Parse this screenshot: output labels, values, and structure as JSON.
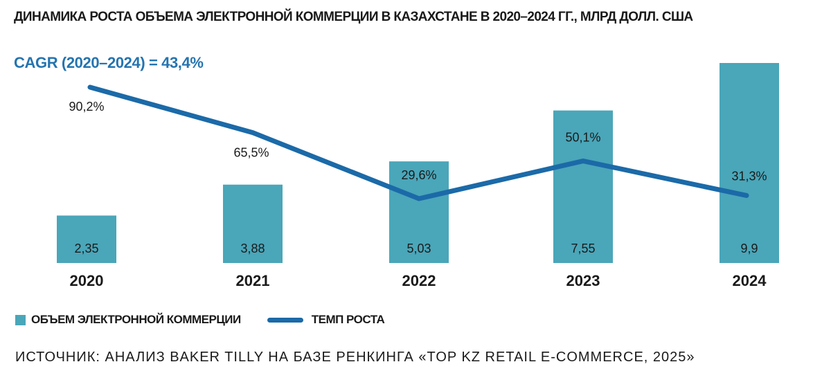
{
  "title": "ДИНАМИКА РОСТА ОБЪЕМА ЭЛЕКТРОННОЙ КОММЕРЦИИ В КАЗАХСТАНЕ В 2020–2024 ГГ., МЛРД ДОЛЛ. США",
  "cagr_label": "CAGR (2020–2024) = 43,4%",
  "legend": {
    "bar_label": "ОБЪЕМ ЭЛЕКТРОННОЙ КОММЕРЦИИ",
    "line_label": "ТЕМП РОСТА"
  },
  "source": "ИСТОЧНИК: АНАЛИЗ BAKER TILLY НА БАЗЕ РЕНКИНГА «TOP KZ RETAIL E-COMMERCE, 2025»",
  "colors": {
    "bar": "#4aa6b9",
    "line": "#1b6aa8",
    "cagr": "#2474b0"
  },
  "chart_data": {
    "type": "bar",
    "categories": [
      "2020",
      "2021",
      "2022",
      "2023",
      "2024"
    ],
    "series": [
      {
        "name": "ОБЪЕМ ЭЛЕКТРОННОЙ КОММЕРЦИИ",
        "type": "bar",
        "values": [
          2.35,
          3.88,
          5.03,
          7.55,
          9.9
        ],
        "labels": [
          "2,35",
          "3,88",
          "5,03",
          "7,55",
          "9,9"
        ]
      },
      {
        "name": "ТЕМП РОСТА",
        "type": "line",
        "values": [
          90.2,
          65.5,
          29.6,
          50.1,
          31.3
        ],
        "labels": [
          "90,2%",
          "65,5%",
          "29,6%",
          "50,1%",
          "31,3%"
        ]
      }
    ]
  }
}
